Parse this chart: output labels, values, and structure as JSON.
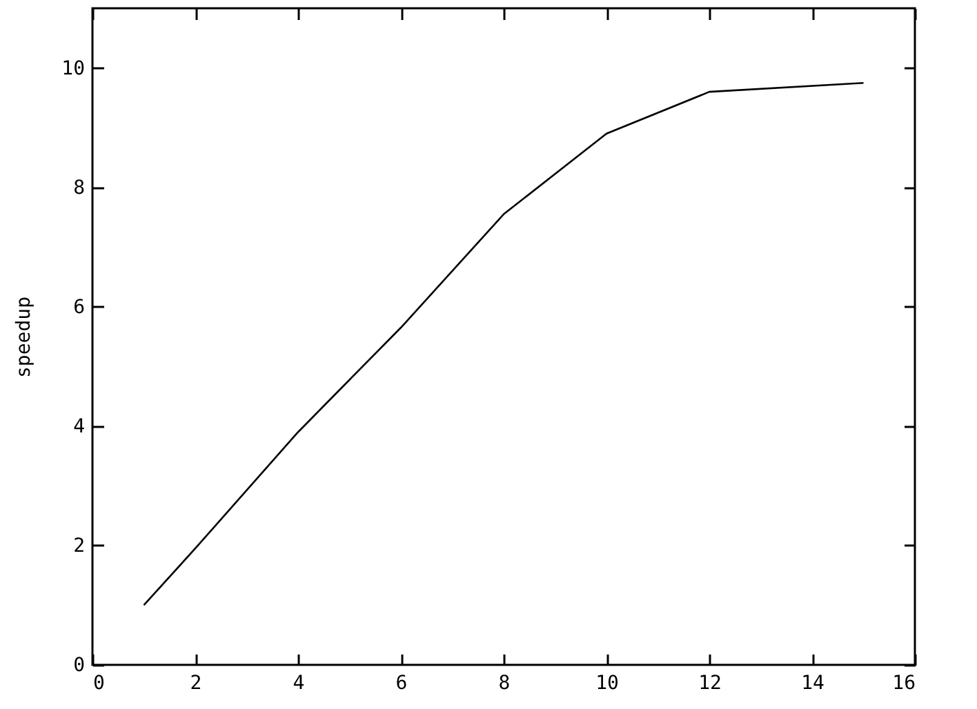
{
  "chart_data": {
    "type": "line",
    "ylabel": "speedup",
    "x": [
      1,
      2,
      4,
      6,
      8,
      10,
      12,
      15
    ],
    "series": [
      {
        "color": "#000000",
        "values": [
          1,
          1.95,
          3.9,
          5.65,
          7.55,
          8.9,
          9.6,
          9.75
        ]
      }
    ],
    "xlim": [
      0,
      16
    ],
    "xticks": [
      0,
      2,
      4,
      6,
      8,
      10,
      12,
      14,
      16
    ],
    "ylim": [
      0,
      11
    ],
    "yticks": [
      0,
      2,
      4,
      6,
      8,
      10
    ],
    "grid": false,
    "legend": false,
    "marker": "none",
    "line_style": "solid"
  }
}
